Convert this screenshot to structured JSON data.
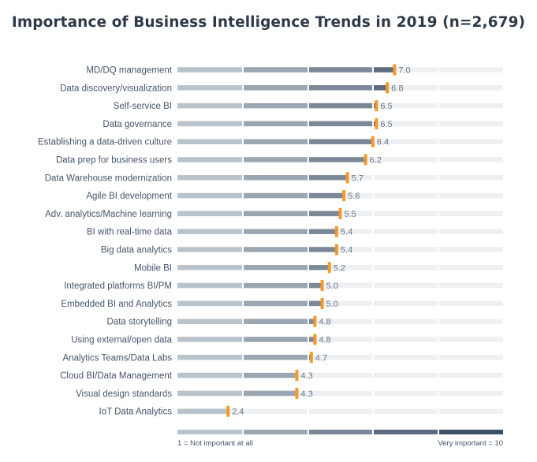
{
  "chart_data": {
    "type": "bar",
    "title": "Importance of Business Intelligence Trends in 2019 (n=2,679)",
    "categories": [
      "MD/DQ management",
      "Data discovery/visualization",
      "Self-service BI",
      "Data governance",
      "Establishing a data-driven culture",
      "Data prep for business users",
      "Data Warehouse modernization",
      "Agile BI development",
      "Adv. analytics/Machine learning",
      "BI with real-time data",
      "Big data analytics",
      "Mobile BI",
      "Integrated platforms BI/PM",
      "Embedded BI and Analytics",
      "Data storytelling",
      "Using external/open data",
      "Analytics Teams/Data Labs",
      "Cloud BI/Data Management",
      "Visual design standards",
      "IoT Data Analytics"
    ],
    "values": [
      7.0,
      6.8,
      6.5,
      6.5,
      6.4,
      6.2,
      5.7,
      5.6,
      5.5,
      5.4,
      5.4,
      5.2,
      5.0,
      5.0,
      4.8,
      4.8,
      4.7,
      4.3,
      4.3,
      2.4
    ],
    "value_labels": [
      "7.0",
      "6.8",
      "6.5",
      "6.5",
      "6.4",
      "6.2",
      "5.7",
      "5.6",
      "5.5",
      "5.4",
      "5.4",
      "5.2",
      "5.0",
      "5.0",
      "4.8",
      "4.8",
      "4.7",
      "4.3",
      "4.3",
      "2.4"
    ],
    "xlim": [
      1,
      10
    ],
    "scale_low_label": "1 = Not important at all",
    "scale_high_label": "Very important = 10",
    "segment_colors": [
      "#b9c3cc",
      "#9aa6b2",
      "#7b8898",
      "#5c6b7d",
      "#3f4f63"
    ],
    "track_color": "#eef0f2",
    "marker_color": "#f39a2b"
  }
}
